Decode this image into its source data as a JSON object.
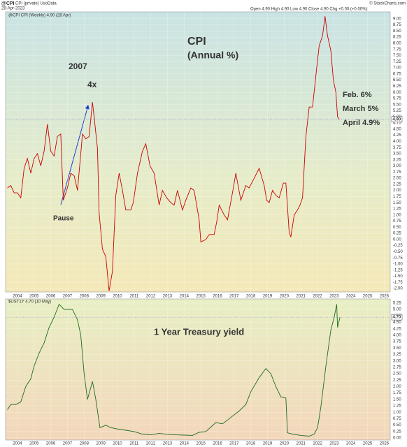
{
  "header": {
    "symbol": "@CPI",
    "name": "CPI (private) UsoData",
    "date": "28-Apr-2023",
    "quote": "Open 4.90 High 4.90 Low 4.90 Close 4.90 Chg +0.00 (+0.00%)",
    "source": "© StockCharts.com"
  },
  "chart_data": [
    {
      "type": "line",
      "last_label": "4.90",
      "annotations": [
        {
          "text": "CPI",
          "color": "#e00000"
        },
        {
          "text": "(Annual %)",
          "color": "#e00000"
        },
        {
          "text": "2007",
          "color": "#1a3ccc"
        },
        {
          "text": "4x",
          "color": "#1a3ccc"
        },
        {
          "text": "Pause",
          "color": "#1a3ccc"
        },
        {
          "text": "Feb. 6%",
          "color": "#1a3ccc"
        },
        {
          "text": "March 5%",
          "color": "#1a3ccc"
        },
        {
          "text": "April 4.9%",
          "color": "#1a3ccc"
        }
      ],
      "x": [
        2003.4,
        2003.6,
        2003.8,
        2004.0,
        2004.2,
        2004.4,
        2004.6,
        2004.8,
        2005.0,
        2005.2,
        2005.4,
        2005.6,
        2005.8,
        2006.0,
        2006.2,
        2006.4,
        2006.6,
        2006.75,
        2007.0,
        2007.2,
        2007.4,
        2007.6,
        2007.8,
        2007.9,
        2008.1,
        2008.3,
        2008.5,
        2008.6,
        2008.8,
        2008.9,
        2009.1,
        2009.3,
        2009.5,
        2009.7,
        2009.9,
        2010.1,
        2010.3,
        2010.5,
        2010.8,
        2010.95,
        2011.2,
        2011.5,
        2011.7,
        2011.95,
        2012.2,
        2012.5,
        2012.7,
        2012.95,
        2013.2,
        2013.4,
        2013.6,
        2013.9,
        2014.1,
        2014.4,
        2014.6,
        2014.9,
        2015.0,
        2015.3,
        2015.5,
        2015.8,
        2015.95,
        2016.1,
        2016.4,
        2016.6,
        2016.95,
        2017.1,
        2017.4,
        2017.7,
        2017.9,
        2018.2,
        2018.5,
        2018.8,
        2018.95,
        2019.1,
        2019.3,
        2019.5,
        2019.7,
        2019.95,
        2020.1,
        2020.3,
        2020.4,
        2020.6,
        2020.8,
        2020.95,
        2021.1,
        2021.3,
        2021.5,
        2021.7,
        2021.95,
        2022.1,
        2022.3,
        2022.45,
        2022.6,
        2022.8,
        2022.95,
        2023.1,
        2023.2,
        2023.3
      ],
      "series": [
        {
          "name": "@CPI CPI (Weekly) 4.90 (28 Apr)",
          "color": "#cc0000",
          "values": [
            2.1,
            2.2,
            1.9,
            1.9,
            1.7,
            2.9,
            3.3,
            2.7,
            3.3,
            3.5,
            3.0,
            3.6,
            4.7,
            3.6,
            3.4,
            4.2,
            4.3,
            1.6,
            2.1,
            2.7,
            2.6,
            2.0,
            3.5,
            4.3,
            4.1,
            4.2,
            5.6,
            5.0,
            3.7,
            1.1,
            -0.4,
            -0.7,
            -2.1,
            -1.3,
            1.8,
            2.7,
            2.0,
            1.2,
            1.2,
            1.5,
            2.7,
            3.6,
            3.9,
            3.0,
            2.7,
            1.4,
            2.0,
            1.7,
            1.5,
            1.4,
            2.0,
            1.2,
            1.6,
            2.1,
            2.0,
            0.8,
            -0.1,
            0.0,
            0.2,
            0.2,
            0.7,
            1.4,
            1.0,
            0.8,
            2.1,
            2.7,
            1.6,
            2.2,
            2.1,
            2.5,
            2.9,
            2.2,
            1.6,
            1.5,
            2.0,
            1.8,
            1.7,
            2.3,
            2.3,
            0.3,
            0.1,
            1.0,
            1.2,
            1.4,
            1.7,
            4.2,
            5.4,
            5.4,
            7.0,
            7.9,
            8.3,
            9.1,
            8.3,
            7.7,
            6.5,
            6.0,
            5.0,
            4.9
          ]
        }
      ],
      "xlim": [
        2003.29,
        2026.36
      ],
      "xticks": [
        2004,
        2005,
        2006,
        2007,
        2008,
        2009,
        2010,
        2011,
        2012,
        2013,
        2014,
        2015,
        2016,
        2017,
        2018,
        2019,
        2020,
        2021,
        2022,
        2023,
        2024,
        2025,
        2026
      ],
      "ylim": [
        -2.14,
        9.28
      ],
      "yticks": [
        {
          "value": -2,
          "label": "-2.00"
        },
        {
          "value": -1.75,
          "label": "-1.75"
        },
        {
          "value": -1.5,
          "label": "-1.50"
        },
        {
          "value": -1.25,
          "label": "-1.25"
        },
        {
          "value": -1,
          "label": "-1.00"
        },
        {
          "value": -0.75,
          "label": "-0.75"
        },
        {
          "value": -0.5,
          "label": "-0.50"
        },
        {
          "value": -0.25,
          "label": "-0.25"
        },
        {
          "value": 0,
          "label": "0.00"
        },
        {
          "value": 0.25,
          "label": "0.25"
        },
        {
          "value": 0.5,
          "label": "0.50"
        },
        {
          "value": 0.75,
          "label": "0.75"
        },
        {
          "value": 1,
          "label": "1.00"
        },
        {
          "value": 1.25,
          "label": "1.25"
        },
        {
          "value": 1.5,
          "label": "1.50"
        },
        {
          "value": 1.75,
          "label": "1.75"
        },
        {
          "value": 2,
          "label": "2.00"
        },
        {
          "value": 2.25,
          "label": "2.25"
        },
        {
          "value": 2.5,
          "label": "2.50"
        },
        {
          "value": 2.75,
          "label": "2.75"
        },
        {
          "value": 3,
          "label": "3.00"
        },
        {
          "value": 3.25,
          "label": "3.25"
        },
        {
          "value": 3.5,
          "label": "3.50"
        },
        {
          "value": 3.75,
          "label": "3.75"
        },
        {
          "value": 4,
          "label": "4.00"
        },
        {
          "value": 4.25,
          "label": "4.25"
        },
        {
          "value": 4.5,
          "label": "4.50"
        },
        {
          "value": 4.75,
          "label": "4.75"
        },
        {
          "value": 5,
          "label": "5.00"
        },
        {
          "value": 5.25,
          "label": "5.25"
        },
        {
          "value": 5.5,
          "label": "5.50"
        },
        {
          "value": 5.75,
          "label": "5.75"
        },
        {
          "value": 6,
          "label": "6.00"
        },
        {
          "value": 6.25,
          "label": "6.25"
        },
        {
          "value": 6.5,
          "label": "6.50"
        },
        {
          "value": 6.75,
          "label": "6.75"
        },
        {
          "value": 7,
          "label": "7.00"
        },
        {
          "value": 7.25,
          "label": "7.25"
        },
        {
          "value": 7.5,
          "label": "7.50"
        },
        {
          "value": 7.75,
          "label": "7.75"
        },
        {
          "value": 8,
          "label": "8.00"
        },
        {
          "value": 8.25,
          "label": "8.25"
        },
        {
          "value": 8.5,
          "label": "8.50"
        },
        {
          "value": 8.75,
          "label": "8.75"
        },
        {
          "value": 9,
          "label": "9.00"
        }
      ],
      "grid": true
    },
    {
      "type": "line",
      "last_label": "4.70",
      "annotations": [
        {
          "text": "1 Year Treasury yield",
          "color": "#2e7d12"
        }
      ],
      "x": [
        2003.4,
        2003.6,
        2003.9,
        2004.2,
        2004.5,
        2004.8,
        2005.0,
        2005.3,
        2005.6,
        2005.9,
        2006.2,
        2006.5,
        2006.8,
        2007.0,
        2007.3,
        2007.6,
        2007.8,
        2008.0,
        2008.2,
        2008.5,
        2008.7,
        2008.95,
        2009.3,
        2009.6,
        2010.0,
        2010.5,
        2011.0,
        2011.5,
        2012.0,
        2012.5,
        2013.0,
        2013.5,
        2014.0,
        2014.5,
        2014.9,
        2015.3,
        2015.9,
        2016.3,
        2016.9,
        2017.3,
        2017.7,
        2018.0,
        2018.5,
        2018.9,
        2019.2,
        2019.5,
        2019.8,
        2020.1,
        2020.2,
        2020.5,
        2021.0,
        2021.5,
        2021.8,
        2022.0,
        2022.2,
        2022.5,
        2022.8,
        2023.0,
        2023.15,
        2023.2,
        2023.35
      ],
      "series": [
        {
          "name": "$UST1Y 4.70 (10 May)",
          "color": "#1f6b1f",
          "values": [
            1.1,
            1.3,
            1.3,
            1.4,
            2.0,
            2.3,
            2.8,
            3.3,
            3.7,
            4.3,
            4.7,
            5.2,
            5.0,
            5.0,
            5.0,
            4.6,
            4.0,
            2.5,
            1.5,
            2.2,
            1.5,
            0.4,
            0.5,
            0.4,
            0.35,
            0.3,
            0.25,
            0.15,
            0.12,
            0.18,
            0.14,
            0.12,
            0.11,
            0.1,
            0.22,
            0.25,
            0.6,
            0.55,
            0.85,
            1.05,
            1.3,
            1.8,
            2.35,
            2.7,
            2.5,
            2.0,
            1.6,
            1.55,
            0.2,
            0.15,
            0.1,
            0.07,
            0.15,
            0.4,
            1.2,
            2.8,
            4.2,
            4.7,
            5.2,
            4.3,
            4.7
          ]
        }
      ],
      "xlim": [
        2003.29,
        2026.36
      ],
      "xticks": [
        2004,
        2005,
        2006,
        2007,
        2008,
        2009,
        2010,
        2011,
        2012,
        2013,
        2014,
        2015,
        2016,
        2017,
        2018,
        2019,
        2020,
        2021,
        2022,
        2023,
        2024,
        2025,
        2026
      ],
      "ylim": [
        -0.08,
        5.41
      ],
      "yticks": [
        {
          "value": 0,
          "label": "0.00"
        },
        {
          "value": 0.25,
          "label": "0.25"
        },
        {
          "value": 0.5,
          "label": "0.50"
        },
        {
          "value": 0.75,
          "label": "0.75"
        },
        {
          "value": 1,
          "label": "1.00"
        },
        {
          "value": 1.25,
          "label": "1.25"
        },
        {
          "value": 1.5,
          "label": "1.50"
        },
        {
          "value": 1.75,
          "label": "1.75"
        },
        {
          "value": 2,
          "label": "2.00"
        },
        {
          "value": 2.25,
          "label": "2.25"
        },
        {
          "value": 2.5,
          "label": "2.50"
        },
        {
          "value": 2.75,
          "label": "2.75"
        },
        {
          "value": 3,
          "label": "3.00"
        },
        {
          "value": 3.25,
          "label": "3.25"
        },
        {
          "value": 3.5,
          "label": "3.50"
        },
        {
          "value": 3.75,
          "label": "3.75"
        },
        {
          "value": 4,
          "label": "4.00"
        },
        {
          "value": 4.25,
          "label": "4.25"
        },
        {
          "value": 4.5,
          "label": "4.50"
        },
        {
          "value": 4.75,
          "label": "4.75"
        },
        {
          "value": 5,
          "label": "5.00"
        },
        {
          "value": 5.25,
          "label": "5.25"
        }
      ],
      "grid": true
    }
  ]
}
